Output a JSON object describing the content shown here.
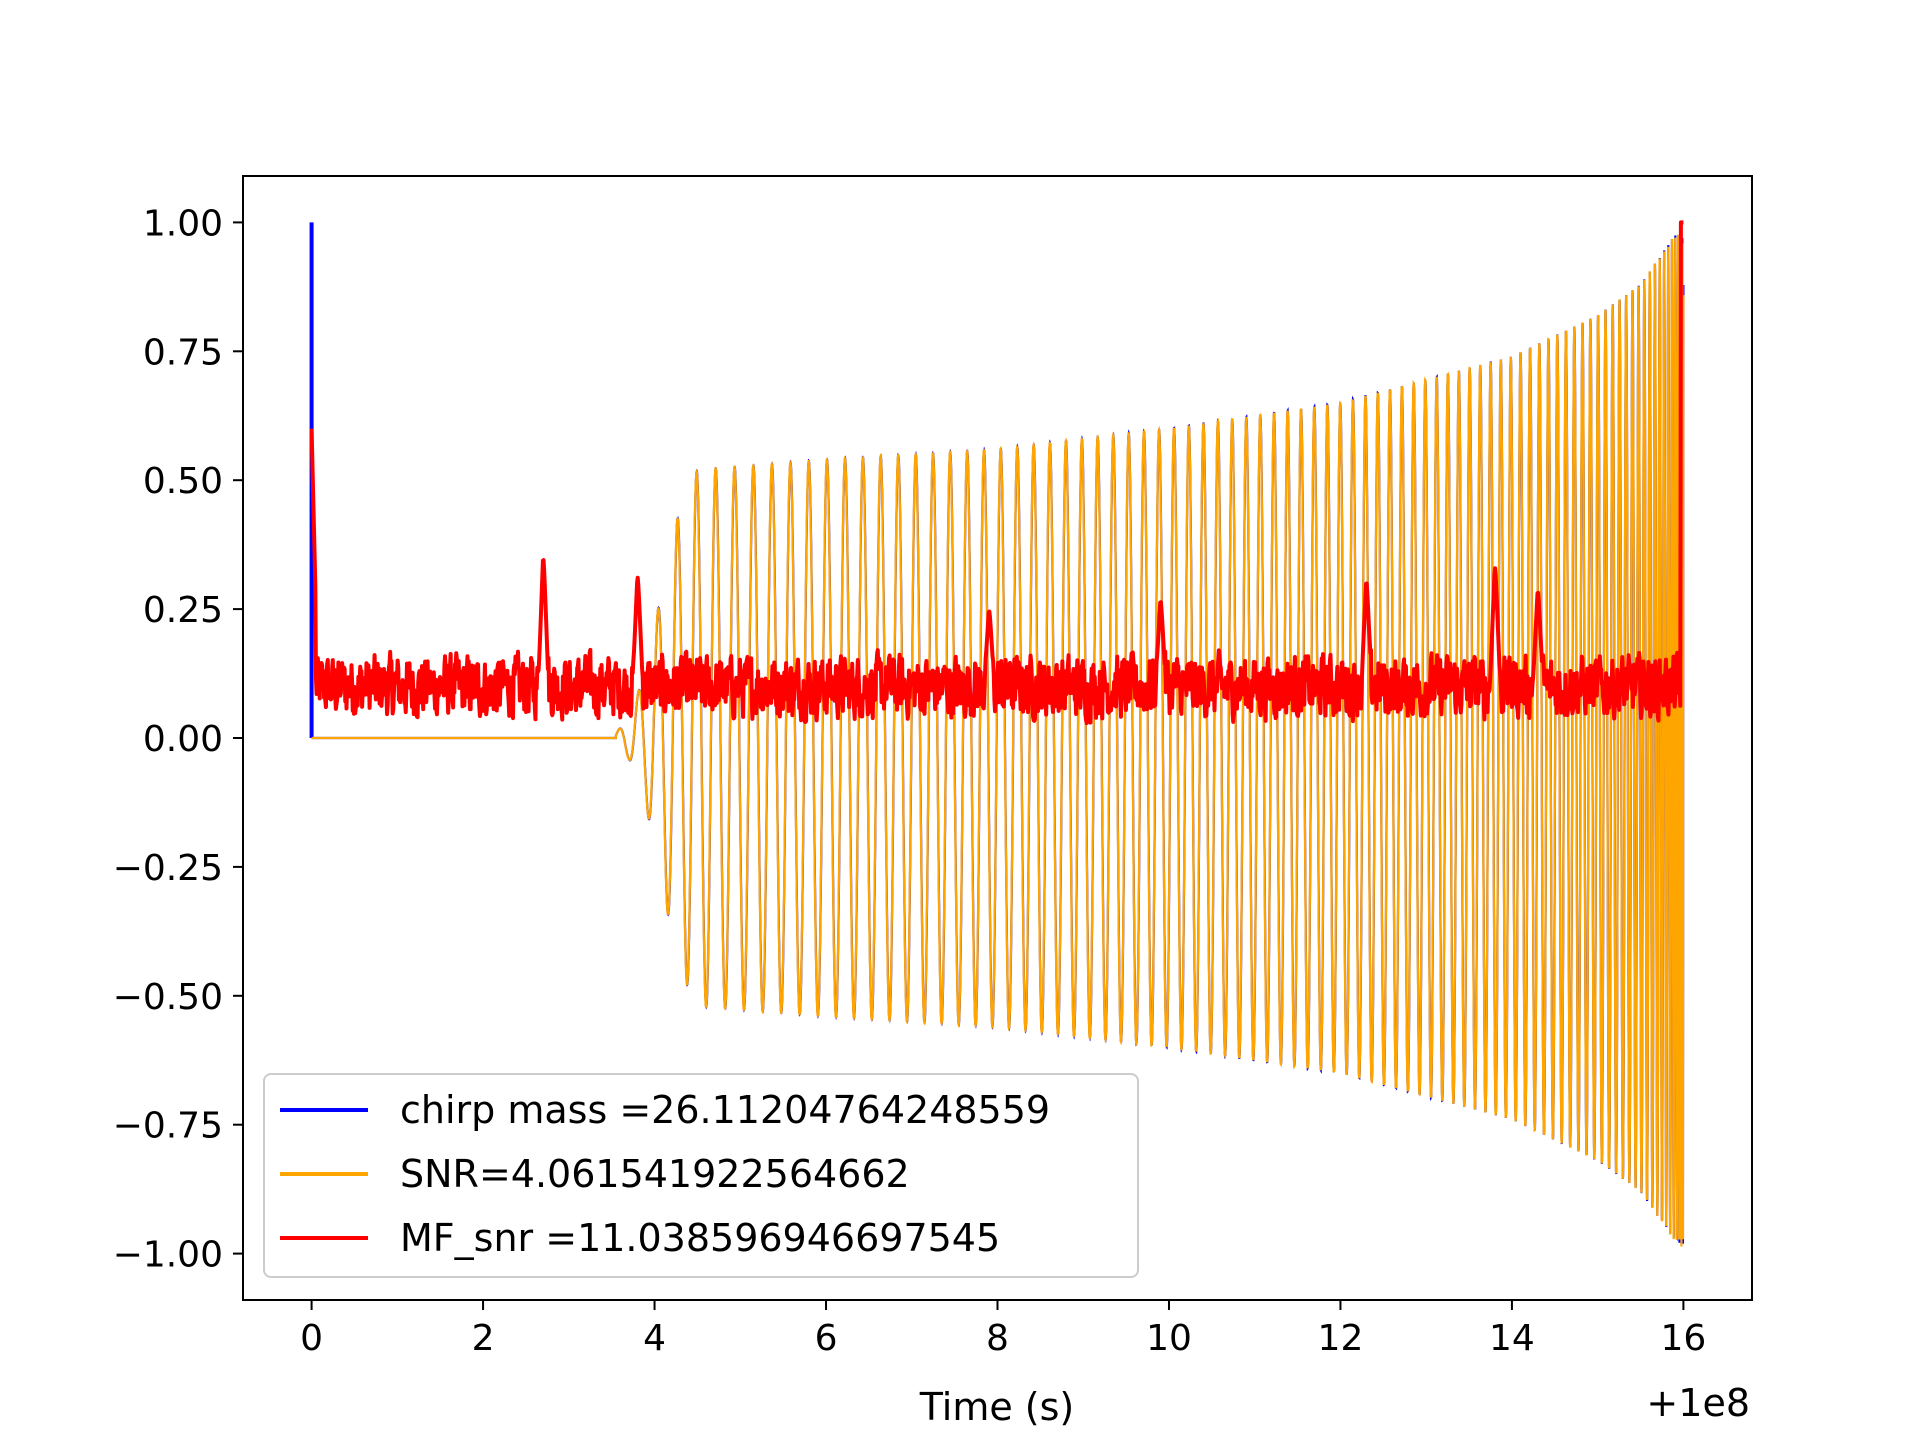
{
  "chart_data": {
    "type": "line",
    "title": "",
    "xlabel": "Time (s)",
    "ylabel": "",
    "x_offset_label": "+1e8",
    "xlim": [
      -0.8,
      16.8
    ],
    "ylim": [
      -1.09,
      1.09
    ],
    "xticks": [
      0,
      2,
      4,
      6,
      8,
      10,
      12,
      14,
      16
    ],
    "xtick_labels": [
      "0",
      "2",
      "4",
      "6",
      "8",
      "10",
      "12",
      "14",
      "16"
    ],
    "yticks": [
      1.0,
      0.75,
      0.5,
      0.25,
      0.0,
      -0.25,
      -0.5,
      -0.75,
      -1.0
    ],
    "ytick_labels": [
      "1.00",
      "0.75",
      "0.50",
      "0.25",
      "0.00",
      "−0.25",
      "−0.50",
      "−0.75",
      "−1.00"
    ],
    "grid": false,
    "legend_position": "lower-left",
    "series": [
      {
        "name": "chirp mass =26.11204764248559",
        "color": "#0000ff",
        "kind": "waveform",
        "x_start": 0,
        "x_end": 16,
        "spike_at_start": 1.0,
        "envelope_x": [
          0,
          3.5,
          3.7,
          3.9,
          4.1,
          4.3,
          4.5,
          6,
          8,
          10,
          12,
          14,
          15,
          15.5,
          16
        ],
        "envelope_y": [
          0,
          0,
          0.04,
          0.13,
          0.3,
          0.45,
          0.52,
          0.54,
          0.56,
          0.6,
          0.65,
          0.74,
          0.82,
          0.88,
          1.0
        ]
      },
      {
        "name": "SNR=4.061541922564662",
        "color": "#ffa500",
        "kind": "waveform",
        "x_start": 0,
        "x_end": 16,
        "envelope_x": [
          0,
          3.5,
          3.7,
          3.9,
          4.1,
          4.3,
          4.5,
          6,
          8,
          10,
          12,
          14,
          15,
          15.5,
          16
        ],
        "envelope_y": [
          0,
          0,
          0.04,
          0.13,
          0.3,
          0.45,
          0.52,
          0.54,
          0.56,
          0.6,
          0.65,
          0.74,
          0.82,
          0.88,
          1.0
        ]
      },
      {
        "name": "MF_snr =11.038596946697545",
        "color": "#ff0000",
        "kind": "noise",
        "x_start": 0,
        "x_end": 16,
        "start_value": 0.6,
        "end_value": 1.0,
        "baseline": 0.1,
        "peaks_x": [
          2.7,
          3.8,
          7.9,
          9.9,
          12.3,
          13.8,
          14.3
        ],
        "peaks_y": [
          0.37,
          0.33,
          0.26,
          0.28,
          0.32,
          0.35,
          0.3
        ]
      }
    ]
  }
}
